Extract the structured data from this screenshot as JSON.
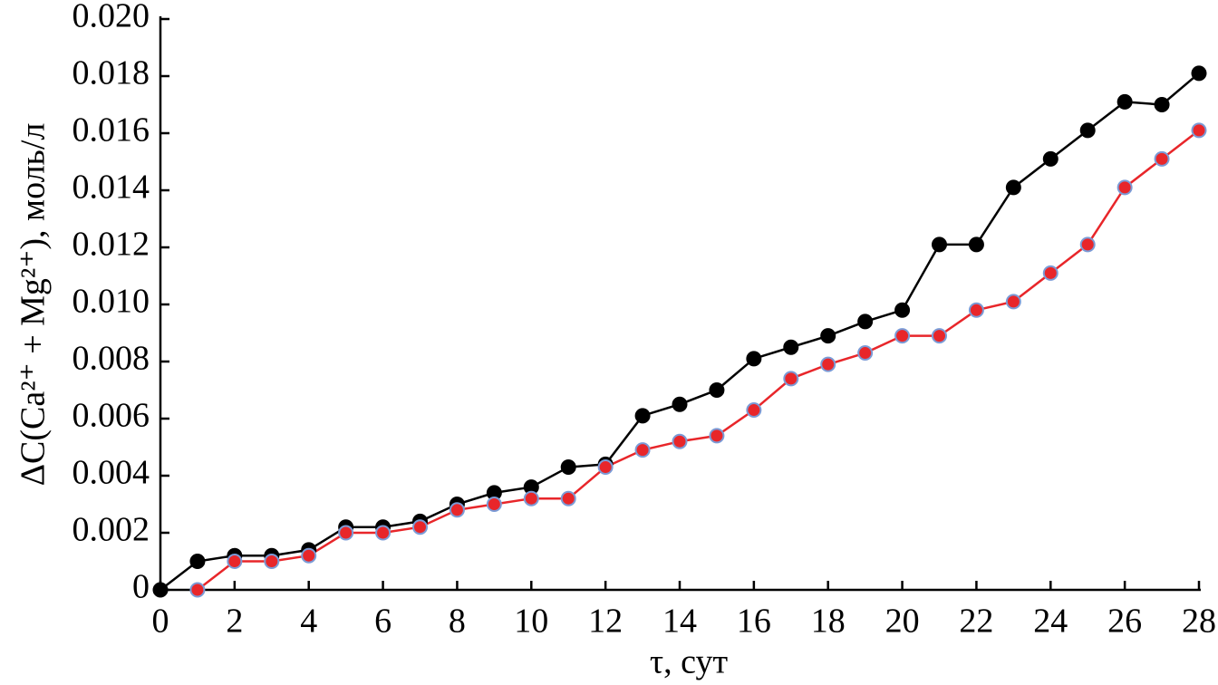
{
  "chart_data": {
    "type": "line",
    "xlabel": "τ, сут",
    "ylabel": "ΔC(Ca²⁺ + Mg²⁺), моль/л",
    "x": [
      0,
      1,
      2,
      3,
      4,
      5,
      6,
      7,
      8,
      9,
      10,
      11,
      12,
      13,
      14,
      15,
      16,
      17,
      18,
      19,
      20,
      21,
      22,
      23,
      24,
      25,
      26,
      27,
      28
    ],
    "series": [
      {
        "color": "#000000",
        "marker_edge": "#000000",
        "values": [
          0,
          0.001,
          0.0012,
          0.0012,
          0.0014,
          0.0022,
          0.0022,
          0.0024,
          0.003,
          0.0034,
          0.0036,
          0.0043,
          0.0044,
          0.0061,
          0.0065,
          0.007,
          0.0081,
          0.0085,
          0.0089,
          0.0094,
          0.0098,
          0.0121,
          0.0121,
          0.0141,
          0.0151,
          0.0161,
          0.0171,
          0.017,
          0.0181
        ]
      },
      {
        "color": "#e8262a",
        "marker_edge": "#7b9bd6",
        "values": [
          null,
          0,
          0.001,
          0.001,
          0.0012,
          0.002,
          0.002,
          0.0022,
          0.0028,
          0.003,
          0.0032,
          0.0032,
          0.0043,
          0.0049,
          0.0052,
          0.0054,
          0.0063,
          0.0074,
          0.0079,
          0.0083,
          0.0089,
          0.0089,
          0.0098,
          0.0101,
          0.0111,
          0.0121,
          0.0141,
          0.0151,
          0.0161
        ]
      }
    ],
    "xlim": [
      0,
      28
    ],
    "xticks": [
      0,
      2,
      4,
      6,
      8,
      10,
      12,
      14,
      16,
      18,
      20,
      22,
      24,
      26,
      28
    ],
    "ylim": [
      0,
      0.02
    ],
    "yticks": [
      0,
      0.002,
      0.004,
      0.006,
      0.008,
      {
        "value": 0.01,
        "label": "0.010"
      },
      0.012,
      0.014,
      0.016,
      0.018,
      {
        "value": 0.02,
        "label": "0.020"
      }
    ],
    "grid": false
  }
}
